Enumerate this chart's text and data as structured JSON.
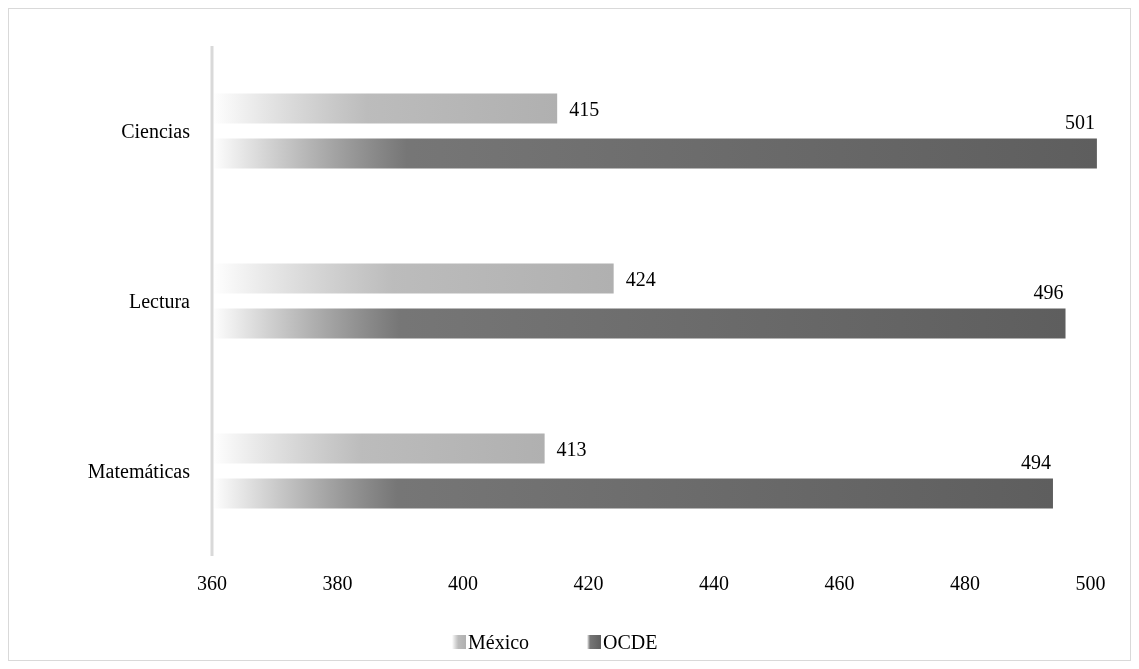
{
  "chart_data": {
    "type": "bar",
    "orientation": "horizontal",
    "categories": [
      "Ciencias",
      "Lectura",
      "Matemáticas"
    ],
    "series": [
      {
        "name": "México",
        "color": "#b0b0b0",
        "values": [
          415,
          424,
          413
        ]
      },
      {
        "name": "OCDE",
        "color": "#5e5e5e",
        "values": [
          501,
          496,
          494
        ]
      }
    ],
    "xlim": [
      360,
      505
    ],
    "xticks": [
      360,
      380,
      400,
      420,
      440,
      460,
      480,
      500
    ],
    "data_labels": true,
    "grid": false,
    "legend": "bottom"
  }
}
